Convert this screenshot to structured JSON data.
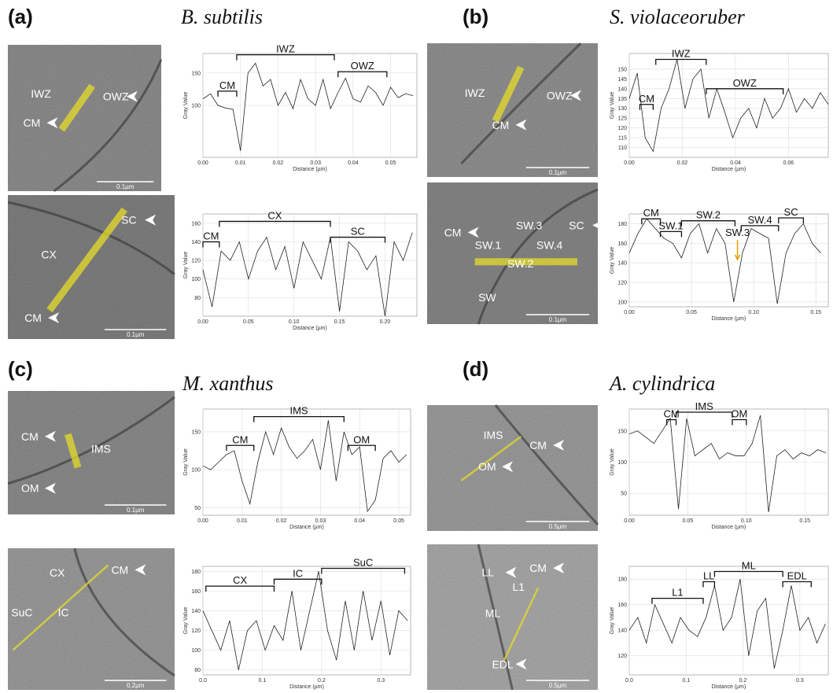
{
  "panels": [
    {
      "label": "(a)",
      "title": "B. subtilis",
      "images": [
        {
          "labels": [
            "IWZ",
            "OWZ",
            "CM"
          ],
          "scale": "0.1µm"
        },
        {
          "labels": [
            "CX",
            "SC",
            "CM"
          ],
          "scale": "0.1µm"
        }
      ]
    },
    {
      "label": "(b)",
      "title": "S. violaceoruber",
      "images": [
        {
          "labels": [
            "IWZ",
            "OWZ",
            "CM"
          ],
          "scale": "0.1µm"
        },
        {
          "labels": [
            "CM",
            "SW.3",
            "SC",
            "SW.1",
            "SW.4",
            "SW.2",
            "SW"
          ],
          "scale": "0.1µm"
        }
      ]
    },
    {
      "label": "(c)",
      "title": "M. xanthus",
      "images": [
        {
          "labels": [
            "CM",
            "IMS",
            "OM"
          ],
          "scale": "0.1µm"
        },
        {
          "labels": [
            "CX",
            "CM",
            "SuC",
            "IC"
          ],
          "scale": "0.2µm"
        }
      ]
    },
    {
      "label": "(d)",
      "title": "A. cylindrica",
      "images": [
        {
          "labels": [
            "IMS",
            "CM",
            "OM"
          ],
          "scale": "0.5µm"
        },
        {
          "labels": [
            "LL",
            "CM",
            "L1",
            "ML",
            "EDL"
          ],
          "scale": "0.5µm"
        }
      ]
    }
  ],
  "chart_data": [
    {
      "type": "line",
      "xlabel": "Distance (µm)",
      "ylabel": "Gray Value",
      "grid": true,
      "xlim": [
        0,
        0.057
      ],
      "xticks": [
        {
          "value": 0,
          "label": "0.00"
        },
        0.01,
        0.02,
        0.03,
        0.04,
        0.05
      ],
      "ylim": [
        20,
        180
      ],
      "yticks": [
        100,
        150
      ],
      "x": [
        0,
        0.002,
        0.004,
        0.006,
        0.008,
        0.01,
        0.012,
        0.014,
        0.016,
        0.018,
        0.02,
        0.022,
        0.024,
        0.026,
        0.028,
        0.03,
        0.032,
        0.034,
        0.036,
        0.038,
        0.04,
        0.042,
        0.044,
        0.046,
        0.048,
        0.05,
        0.052,
        0.054,
        0.056
      ],
      "series": [
        {
          "color": "#222222",
          "values": [
            110,
            118,
            100,
            96,
            94,
            30,
            150,
            165,
            130,
            140,
            100,
            120,
            95,
            140,
            110,
            100,
            140,
            95,
            120,
            142,
            110,
            105,
            130,
            120,
            100,
            128,
            112,
            118,
            115
          ]
        }
      ],
      "annotations": [
        {
          "text": "CM",
          "x0": 0.004,
          "x1": 0.009,
          "y": 122
        },
        {
          "text": "IWZ",
          "x0": 0.009,
          "x1": 0.035,
          "y": 178
        },
        {
          "text": "OWZ",
          "x0": 0.036,
          "x1": 0.049,
          "y": 152
        }
      ]
    },
    {
      "type": "line",
      "xlabel": "Distance (µm)",
      "ylabel": "Gray Value",
      "grid": true,
      "xlim": [
        0,
        0.235
      ],
      "xticks": [
        {
          "value": 0,
          "label": "0.00"
        },
        0.05,
        {
          "value": 0.1,
          "label": "0.10"
        },
        0.15,
        {
          "value": 0.2,
          "label": "0.20"
        }
      ],
      "ylim": [
        60,
        170
      ],
      "yticks": [
        80,
        100,
        120,
        140,
        160
      ],
      "x": [
        0,
        0.01,
        0.02,
        0.03,
        0.04,
        0.05,
        0.06,
        0.07,
        0.08,
        0.09,
        0.1,
        0.11,
        0.12,
        0.13,
        0.14,
        0.15,
        0.16,
        0.17,
        0.18,
        0.19,
        0.2,
        0.21,
        0.22,
        0.23
      ],
      "series": [
        {
          "color": "#222222",
          "values": [
            110,
            70,
            130,
            120,
            140,
            100,
            130,
            145,
            110,
            135,
            90,
            140,
            120,
            100,
            145,
            65,
            140,
            130,
            110,
            125,
            60,
            140,
            120,
            150
          ]
        }
      ],
      "annotations": [
        {
          "text": "CM",
          "x0": 0,
          "x1": 0.018,
          "y": 140
        },
        {
          "text": "CX",
          "x0": 0.018,
          "x1": 0.14,
          "y": 162
        },
        {
          "text": "SC",
          "x0": 0.14,
          "x1": 0.2,
          "y": 145
        }
      ]
    },
    {
      "type": "line",
      "xlabel": "Distance (µm)",
      "ylabel": "Gray Value",
      "grid": true,
      "xlim": [
        0,
        0.075
      ],
      "xticks": [
        {
          "value": 0,
          "label": "0.00"
        },
        0.02,
        0.04,
        0.06
      ],
      "ylim": [
        105,
        158
      ],
      "yticks": [
        110,
        115,
        120,
        125,
        130,
        135,
        140,
        145,
        150
      ],
      "x": [
        0,
        0.003,
        0.006,
        0.009,
        0.012,
        0.015,
        0.018,
        0.021,
        0.024,
        0.027,
        0.03,
        0.033,
        0.036,
        0.039,
        0.042,
        0.045,
        0.048,
        0.051,
        0.054,
        0.057,
        0.06,
        0.063,
        0.066,
        0.069,
        0.072,
        0.075
      ],
      "series": [
        {
          "color": "#222222",
          "values": [
            135,
            148,
            115,
            108,
            130,
            140,
            155,
            130,
            145,
            150,
            125,
            140,
            128,
            115,
            125,
            130,
            120,
            135,
            125,
            130,
            140,
            128,
            135,
            130,
            138,
            132
          ]
        }
      ],
      "annotations": [
        {
          "text": "CM",
          "x0": 0.004,
          "x1": 0.009,
          "y": 132
        },
        {
          "text": "IWZ",
          "x0": 0.01,
          "x1": 0.029,
          "y": 155
        },
        {
          "text": "OWZ",
          "x0": 0.029,
          "x1": 0.058,
          "y": 140
        }
      ]
    },
    {
      "type": "line",
      "xlabel": "Distance (µm)",
      "ylabel": "Gray Value",
      "grid": true,
      "xlim": [
        0,
        0.16
      ],
      "xticks": [
        {
          "value": 0,
          "label": "0.00"
        },
        0.05,
        {
          "value": 0.1,
          "label": "0.10"
        },
        0.15
      ],
      "ylim": [
        95,
        190
      ],
      "yticks": [
        100,
        120,
        140,
        160,
        180
      ],
      "x": [
        0,
        0.007,
        0.014,
        0.021,
        0.028,
        0.035,
        0.042,
        0.049,
        0.056,
        0.063,
        0.07,
        0.077,
        0.084,
        0.091,
        0.098,
        0.105,
        0.112,
        0.119,
        0.126,
        0.133,
        0.14,
        0.147,
        0.154
      ],
      "series": [
        {
          "color": "#222222",
          "values": [
            150,
            170,
            185,
            175,
            165,
            160,
            145,
            170,
            180,
            150,
            175,
            160,
            100,
            150,
            175,
            170,
            165,
            98,
            150,
            170,
            180,
            160,
            150
          ]
        }
      ],
      "annotations": [
        {
          "text": "CM",
          "x0": 0.01,
          "x1": 0.025,
          "y": 185
        },
        {
          "text": "SW.1",
          "x0": 0.025,
          "x1": 0.042,
          "y": 172
        },
        {
          "text": "SW.2",
          "x0": 0.042,
          "x1": 0.085,
          "y": 183
        },
        {
          "text": "SW.4",
          "x0": 0.09,
          "x1": 0.12,
          "y": 178
        },
        {
          "text": "SC",
          "x0": 0.12,
          "x1": 0.14,
          "y": 186
        }
      ],
      "arrows": [
        {
          "text": "SW.3",
          "x": 0.087,
          "y": 165,
          "color": "#e8a000"
        }
      ]
    },
    {
      "type": "line",
      "xlabel": "Distance (µm)",
      "ylabel": "Gray Value",
      "grid": true,
      "xlim": [
        0,
        0.053
      ],
      "xticks": [
        {
          "value": 0,
          "label": "0.00"
        },
        0.01,
        0.02,
        0.03,
        0.04,
        0.05
      ],
      "ylim": [
        40,
        180
      ],
      "yticks": [
        50,
        100,
        150
      ],
      "x": [
        0,
        0.002,
        0.004,
        0.006,
        0.008,
        0.01,
        0.012,
        0.014,
        0.016,
        0.018,
        0.02,
        0.022,
        0.024,
        0.026,
        0.028,
        0.03,
        0.032,
        0.034,
        0.036,
        0.038,
        0.04,
        0.042,
        0.044,
        0.046,
        0.048,
        0.05,
        0.052
      ],
      "series": [
        {
          "color": "#222222",
          "values": [
            105,
            100,
            110,
            120,
            125,
            85,
            55,
            110,
            150,
            120,
            155,
            130,
            115,
            125,
            140,
            100,
            165,
            85,
            150,
            120,
            130,
            45,
            60,
            115,
            125,
            110,
            120
          ]
        }
      ],
      "annotations": [
        {
          "text": "CM",
          "x0": 0.006,
          "x1": 0.013,
          "y": 132
        },
        {
          "text": "IMS",
          "x0": 0.013,
          "x1": 0.036,
          "y": 170
        },
        {
          "text": "OM",
          "x0": 0.037,
          "x1": 0.044,
          "y": 132
        }
      ]
    },
    {
      "type": "line",
      "xlabel": "Distance (µm)",
      "ylabel": "Gray Value",
      "grid": true,
      "xlim": [
        0,
        0.35
      ],
      "xticks": [
        {
          "value": 0,
          "label": "0.0"
        },
        0.1,
        0.2,
        0.3
      ],
      "ylim": [
        75,
        185
      ],
      "yticks": [
        80,
        100,
        120,
        140,
        160,
        180
      ],
      "x": [
        0,
        0.015,
        0.03,
        0.045,
        0.06,
        0.075,
        0.09,
        0.105,
        0.12,
        0.135,
        0.15,
        0.165,
        0.18,
        0.195,
        0.21,
        0.225,
        0.24,
        0.255,
        0.27,
        0.285,
        0.3,
        0.315,
        0.33,
        0.345
      ],
      "series": [
        {
          "color": "#222222",
          "values": [
            140,
            120,
            100,
            130,
            80,
            120,
            130,
            100,
            125,
            110,
            160,
            100,
            140,
            180,
            120,
            90,
            150,
            100,
            160,
            110,
            150,
            95,
            140,
            130
          ]
        }
      ],
      "annotations": [
        {
          "text": "CX",
          "x0": 0.005,
          "x1": 0.12,
          "y": 165
        },
        {
          "text": "IC",
          "x0": 0.12,
          "x1": 0.2,
          "y": 172
        },
        {
          "text": "SuC",
          "x0": 0.2,
          "x1": 0.34,
          "y": 183
        }
      ]
    },
    {
      "type": "line",
      "xlabel": "Distance (µm)",
      "ylabel": "Gray Value",
      "grid": true,
      "xlim": [
        0,
        0.17
      ],
      "xticks": [
        {
          "value": 0,
          "label": "0.00"
        },
        0.05,
        {
          "value": 0.1,
          "label": "0.10"
        },
        0.15
      ],
      "ylim": [
        15,
        185
      ],
      "yticks": [
        50,
        100,
        150
      ],
      "x": [
        0,
        0.007,
        0.014,
        0.021,
        0.028,
        0.035,
        0.042,
        0.049,
        0.056,
        0.063,
        0.07,
        0.077,
        0.084,
        0.091,
        0.098,
        0.105,
        0.112,
        0.119,
        0.126,
        0.133,
        0.14,
        0.147,
        0.154,
        0.161,
        0.168
      ],
      "series": [
        {
          "color": "#222222",
          "values": [
            145,
            150,
            140,
            130,
            150,
            170,
            25,
            170,
            110,
            120,
            130,
            105,
            115,
            110,
            110,
            130,
            175,
            20,
            110,
            120,
            105,
            115,
            110,
            120,
            115
          ]
        }
      ],
      "annotations": [
        {
          "text": "CM",
          "x0": 0.032,
          "x1": 0.04,
          "y": 168
        },
        {
          "text": "IMS",
          "x0": 0.04,
          "x1": 0.088,
          "y": 180
        },
        {
          "text": "OM",
          "x0": 0.088,
          "x1": 0.1,
          "y": 168
        }
      ]
    },
    {
      "type": "line",
      "xlabel": "Distance (µm)",
      "ylabel": "Gray Value",
      "grid": true,
      "xlim": [
        0,
        0.35
      ],
      "xticks": [
        {
          "value": 0,
          "label": "0.0"
        },
        0.1,
        0.2,
        0.3
      ],
      "ylim": [
        105,
        190
      ],
      "yticks": [
        120,
        140,
        160,
        180
      ],
      "x": [
        0,
        0.015,
        0.03,
        0.045,
        0.06,
        0.075,
        0.09,
        0.105,
        0.12,
        0.135,
        0.15,
        0.165,
        0.18,
        0.195,
        0.21,
        0.225,
        0.24,
        0.255,
        0.27,
        0.285,
        0.3,
        0.315,
        0.33,
        0.345
      ],
      "series": [
        {
          "color": "#222222",
          "values": [
            140,
            150,
            130,
            160,
            145,
            130,
            150,
            140,
            135,
            150,
            175,
            140,
            150,
            180,
            120,
            155,
            165,
            110,
            140,
            175,
            140,
            150,
            130,
            145
          ]
        }
      ],
      "annotations": [
        {
          "text": "L1",
          "x0": 0.04,
          "x1": 0.13,
          "y": 165
        },
        {
          "text": "LL",
          "x0": 0.13,
          "x1": 0.15,
          "y": 178
        },
        {
          "text": "ML",
          "x0": 0.15,
          "x1": 0.27,
          "y": 186
        },
        {
          "text": "EDL",
          "x0": 0.27,
          "x1": 0.32,
          "y": 178
        }
      ]
    }
  ]
}
